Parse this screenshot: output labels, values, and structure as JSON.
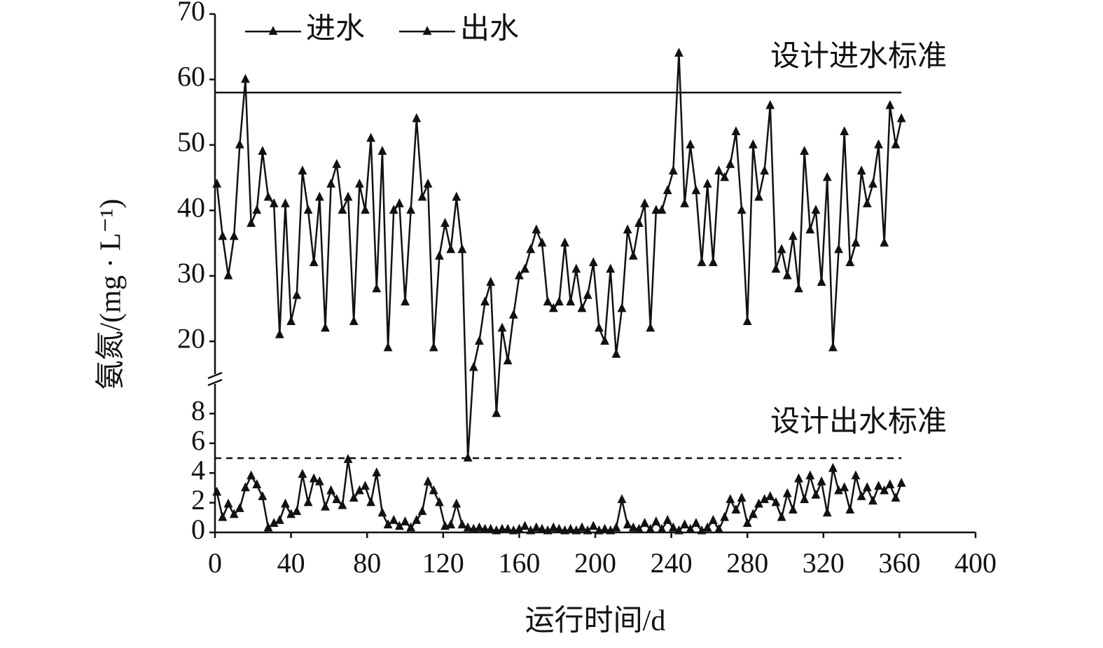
{
  "chart_data": {
    "type": "line",
    "x_label": "运行时间/d",
    "y_label": "氨氮/(mg · L⁻¹)",
    "legend": "upper left",
    "xlim": [
      0,
      400
    ],
    "xticks": [
      0,
      40,
      80,
      120,
      160,
      200,
      240,
      280,
      320,
      360,
      400
    ],
    "ylim": [
      0,
      70
    ],
    "ybreak": [
      10,
      15
    ],
    "yticks": [
      0,
      2,
      4,
      6,
      8,
      20,
      30,
      40,
      50,
      60,
      70
    ],
    "reference_lines": [
      {
        "value": 58,
        "label": "设计进水标准",
        "style": "solid"
      },
      {
        "value": 5,
        "label": "设计出水标准",
        "style": "dashed"
      }
    ],
    "x": [
      1,
      4,
      7,
      10,
      13,
      16,
      19,
      22,
      25,
      28,
      31,
      34,
      37,
      40,
      43,
      46,
      49,
      52,
      55,
      58,
      61,
      64,
      67,
      70,
      73,
      76,
      79,
      82,
      85,
      88,
      91,
      94,
      97,
      100,
      103,
      106,
      109,
      112,
      115,
      118,
      121,
      124,
      127,
      130,
      133,
      136,
      139,
      142,
      145,
      148,
      151,
      154,
      157,
      160,
      163,
      166,
      169,
      172,
      175,
      178,
      181,
      184,
      187,
      190,
      193,
      196,
      199,
      202,
      205,
      208,
      211,
      214,
      217,
      220,
      223,
      226,
      229,
      232,
      235,
      238,
      241,
      244,
      247,
      250,
      253,
      256,
      259,
      262,
      265,
      268,
      271,
      274,
      277,
      280,
      283,
      286,
      289,
      292,
      295,
      298,
      301,
      304,
      307,
      310,
      313,
      316,
      319,
      322,
      325,
      328,
      331,
      334,
      337,
      340,
      343,
      346,
      349,
      352,
      355,
      358,
      361
    ],
    "series": [
      {
        "name": "进水",
        "color": "#111111",
        "marker": "triangle",
        "values": [
          44,
          36,
          30,
          36,
          50,
          60,
          38,
          40,
          49,
          42,
          41,
          21,
          41,
          23,
          27,
          46,
          40,
          32,
          42,
          22,
          44,
          47,
          40,
          42,
          23,
          44,
          40,
          51,
          28,
          49,
          19,
          40,
          41,
          26,
          40,
          54,
          42,
          44,
          19,
          33,
          38,
          34,
          42,
          34,
          5,
          16,
          20,
          26,
          29,
          8,
          22,
          17,
          24,
          30,
          31,
          34,
          37,
          35,
          26,
          25,
          26,
          35,
          26,
          31,
          25,
          27,
          32,
          22,
          20,
          31,
          18,
          25,
          37,
          33,
          38,
          41,
          22,
          40,
          40,
          43,
          46,
          64,
          41,
          50,
          43,
          32,
          44,
          32,
          46,
          45,
          47,
          52,
          40,
          23,
          50,
          42,
          46,
          56,
          31,
          34,
          30,
          36,
          28,
          49,
          37,
          40,
          29,
          45,
          19,
          34,
          52,
          32,
          35,
          46,
          41,
          44,
          50,
          35,
          56,
          50,
          54
        ]
      },
      {
        "name": "出水",
        "color": "#111111",
        "marker": "triangle",
        "values": [
          2.7,
          1.0,
          1.9,
          1.2,
          1.6,
          3.0,
          3.8,
          3.2,
          2.4,
          0.3,
          0.6,
          0.8,
          1.9,
          1.2,
          1.4,
          3.9,
          2.0,
          3.6,
          3.4,
          1.7,
          2.8,
          2.2,
          1.8,
          4.9,
          2.3,
          2.8,
          3.1,
          2.0,
          4.0,
          1.3,
          0.5,
          0.8,
          0.4,
          0.7,
          0.3,
          0.8,
          1.4,
          3.4,
          2.8,
          2.0,
          0.4,
          0.5,
          1.9,
          0.5,
          0.3,
          0.2,
          0.3,
          0.2,
          0.2,
          0.1,
          0.2,
          0.2,
          0.1,
          0.2,
          0.4,
          0.1,
          0.3,
          0.2,
          0.1,
          0.3,
          0.2,
          0.1,
          0.2,
          0.1,
          0.3,
          0.1,
          0.4,
          0.1,
          0.2,
          0.1,
          0.3,
          2.2,
          0.5,
          0.3,
          0.2,
          0.6,
          0.2,
          0.7,
          0.2,
          0.8,
          0.3,
          0.1,
          0.5,
          0.2,
          0.6,
          0.1,
          0.3,
          0.8,
          0.2,
          1.0,
          2.2,
          1.5,
          2.3,
          0.6,
          1.2,
          1.9,
          2.2,
          2.4,
          2.0,
          1.0,
          2.6,
          1.5,
          3.6,
          2.2,
          3.8,
          2.5,
          3.4,
          1.3,
          4.3,
          2.8,
          3.0,
          1.5,
          3.8,
          2.4,
          3.0,
          2.1,
          3.1,
          2.8,
          3.2,
          2.3,
          3.3
        ]
      }
    ]
  }
}
